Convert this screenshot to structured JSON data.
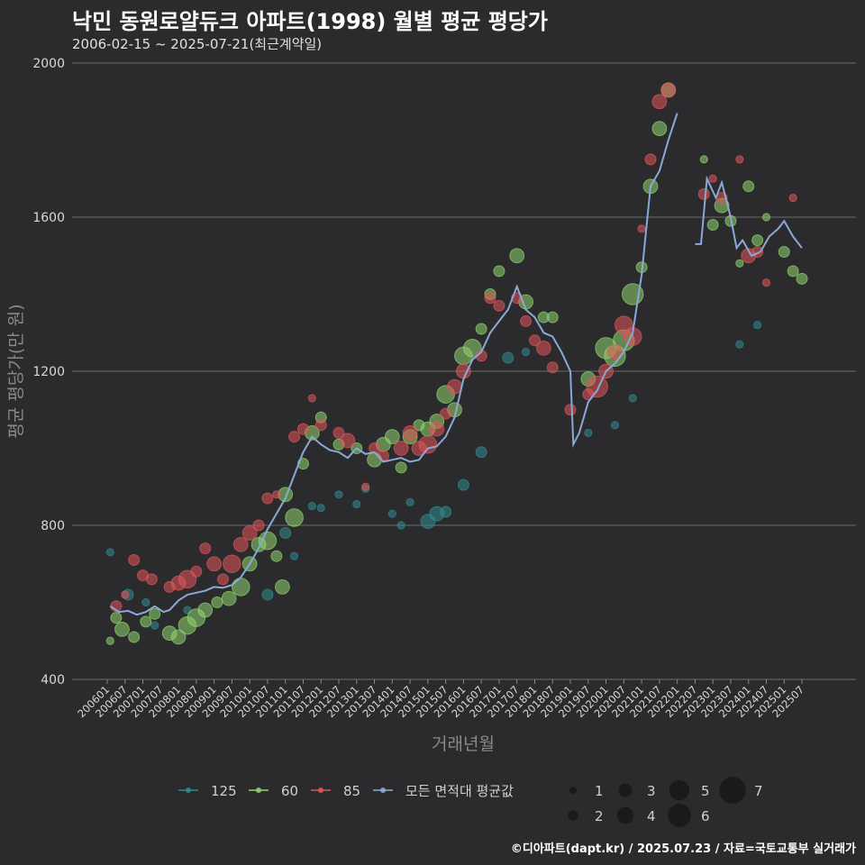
{
  "header": {
    "title": "낙민 동원로얄듀크 아파트(1998) 월별 평균 평당가",
    "subtitle": "2006-02-15 ~ 2025-07-21(최근계약일)"
  },
  "footer": {
    "caption": "©디아파트(dapt.kr) / 2025.07.23 / 자료=국토교통부 실거래가"
  },
  "colors": {
    "background": "#2b2b2d",
    "grid": "#6b6b6b",
    "area_125": "#2f8a8f",
    "area_60": "#8fd46e",
    "area_85": "#e0555a",
    "avg_line": "#8aa9d6"
  },
  "chart_data": {
    "type": "scatter",
    "title": "낙민 동원로얄듀크 아파트(1998) 월별 평균 평당가",
    "xlabel": "거래년월",
    "ylabel": "평균 평당가(만 원)",
    "x_ticks": [
      "200601",
      "200607",
      "200701",
      "200707",
      "200801",
      "200807",
      "200901",
      "200907",
      "201001",
      "201007",
      "201101",
      "201107",
      "201201",
      "201207",
      "201301",
      "201307",
      "201401",
      "201407",
      "201501",
      "201507",
      "201601",
      "201607",
      "201701",
      "201707",
      "201801",
      "201807",
      "201901",
      "201907",
      "202001",
      "202007",
      "202101",
      "202107",
      "202201",
      "202207",
      "202301",
      "202307",
      "202401",
      "202407",
      "202501",
      "202507"
    ],
    "y_ticks": [
      400,
      800,
      1200,
      1600,
      2000
    ],
    "ylim": [
      400,
      2000
    ],
    "grid": true,
    "legend_position": "bottom",
    "legend": {
      "areas": [
        "125",
        "60",
        "85",
        "모든 면적대 평균값"
      ],
      "sizes": [
        1,
        2,
        3,
        4,
        5,
        6,
        7
      ]
    },
    "avg_line": {
      "name": "모든 면적대 평균값",
      "points": [
        [
          "2006-02",
          590
        ],
        [
          "2006-05",
          575
        ],
        [
          "2006-08",
          578
        ],
        [
          "2006-11",
          568
        ],
        [
          "2007-02",
          575
        ],
        [
          "2007-05",
          590
        ],
        [
          "2007-08",
          575
        ],
        [
          "2007-10",
          580
        ],
        [
          "2008-01",
          605
        ],
        [
          "2008-04",
          620
        ],
        [
          "2008-07",
          625
        ],
        [
          "2008-10",
          630
        ],
        [
          "2009-01",
          640
        ],
        [
          "2009-04",
          638
        ],
        [
          "2009-07",
          645
        ],
        [
          "2009-10",
          665
        ],
        [
          "2010-01",
          700
        ],
        [
          "2010-04",
          740
        ],
        [
          "2010-07",
          790
        ],
        [
          "2010-10",
          830
        ],
        [
          "2011-01",
          870
        ],
        [
          "2011-04",
          930
        ],
        [
          "2011-07",
          990
        ],
        [
          "2011-10",
          1030
        ],
        [
          "2012-01",
          1010
        ],
        [
          "2012-04",
          995
        ],
        [
          "2012-07",
          990
        ],
        [
          "2012-10",
          975
        ],
        [
          "2013-01",
          1000
        ],
        [
          "2013-04",
          985
        ],
        [
          "2013-07",
          990
        ],
        [
          "2013-10",
          965
        ],
        [
          "2014-01",
          970
        ],
        [
          "2014-04",
          975
        ],
        [
          "2014-07",
          965
        ],
        [
          "2014-10",
          970
        ],
        [
          "2015-01",
          1000
        ],
        [
          "2015-04",
          1005
        ],
        [
          "2015-07",
          1030
        ],
        [
          "2015-10",
          1080
        ],
        [
          "2016-01",
          1180
        ],
        [
          "2016-04",
          1230
        ],
        [
          "2016-07",
          1250
        ],
        [
          "2016-10",
          1300
        ],
        [
          "2017-01",
          1330
        ],
        [
          "2017-04",
          1360
        ],
        [
          "2017-07",
          1420
        ],
        [
          "2017-10",
          1360
        ],
        [
          "2018-01",
          1340
        ],
        [
          "2018-04",
          1300
        ],
        [
          "2018-07",
          1290
        ],
        [
          "2018-10",
          1250
        ],
        [
          "2019-01",
          1200
        ],
        [
          "2019-02",
          1010
        ],
        [
          "2019-04",
          1040
        ],
        [
          "2019-07",
          1120
        ],
        [
          "2019-10",
          1150
        ],
        [
          "2020-01",
          1200
        ],
        [
          "2020-04",
          1220
        ],
        [
          "2020-07",
          1250
        ],
        [
          "2020-10",
          1300
        ],
        [
          "2021-01",
          1450
        ],
        [
          "2021-04",
          1680
        ],
        [
          "2021-07",
          1720
        ],
        [
          "2021-10",
          1800
        ],
        [
          "2022-01",
          1870
        ],
        null,
        [
          "2022-07",
          1530
        ],
        [
          "2022-09",
          1530
        ],
        [
          "2022-11",
          1700
        ],
        [
          "2023-02",
          1650
        ],
        [
          "2023-04",
          1690
        ],
        [
          "2023-07",
          1600
        ],
        [
          "2023-09",
          1520
        ],
        [
          "2023-11",
          1540
        ],
        [
          "2024-02",
          1500
        ],
        [
          "2024-05",
          1510
        ],
        [
          "2024-08",
          1550
        ],
        [
          "2024-11",
          1570
        ],
        [
          "2025-01",
          1590
        ],
        [
          "2025-04",
          1550
        ],
        [
          "2025-07",
          1520
        ]
      ]
    },
    "series": [
      {
        "name": "125",
        "points": [
          [
            "2006-02",
            730,
            1
          ],
          [
            "2006-08",
            620,
            2
          ],
          [
            "2007-02",
            600,
            1
          ],
          [
            "2007-05",
            540,
            1
          ],
          [
            "2008-04",
            580,
            1
          ],
          [
            "2010-07",
            620,
            2
          ],
          [
            "2011-01",
            780,
            2
          ],
          [
            "2011-04",
            720,
            1
          ],
          [
            "2011-10",
            850,
            1
          ],
          [
            "2012-01",
            845,
            1
          ],
          [
            "2012-07",
            880,
            1
          ],
          [
            "2013-01",
            855,
            1
          ],
          [
            "2013-04",
            895,
            1
          ],
          [
            "2014-01",
            830,
            1
          ],
          [
            "2014-04",
            800,
            1
          ],
          [
            "2014-07",
            860,
            1
          ],
          [
            "2015-01",
            810,
            3
          ],
          [
            "2015-04",
            830,
            3
          ],
          [
            "2015-07",
            835,
            2
          ],
          [
            "2016-01",
            905,
            2
          ],
          [
            "2016-07",
            990,
            2
          ],
          [
            "2017-04",
            1235,
            2
          ],
          [
            "2017-10",
            1250,
            1
          ],
          [
            "2019-07",
            1040,
            1
          ],
          [
            "2020-04",
            1060,
            1
          ],
          [
            "2020-10",
            1130,
            1
          ],
          [
            "2023-10",
            1270,
            1
          ],
          [
            "2024-04",
            1320,
            1
          ]
        ]
      },
      {
        "name": "60",
        "points": [
          [
            "2006-02",
            500,
            1
          ],
          [
            "2006-04",
            560,
            2
          ],
          [
            "2006-06",
            530,
            3
          ],
          [
            "2006-10",
            510,
            2
          ],
          [
            "2007-02",
            550,
            2
          ],
          [
            "2007-05",
            570,
            2
          ],
          [
            "2007-10",
            520,
            3
          ],
          [
            "2008-01",
            510,
            3
          ],
          [
            "2008-04",
            540,
            4
          ],
          [
            "2008-07",
            560,
            4
          ],
          [
            "2008-10",
            580,
            3
          ],
          [
            "2009-02",
            600,
            2
          ],
          [
            "2009-06",
            610,
            3
          ],
          [
            "2009-10",
            640,
            4
          ],
          [
            "2010-01",
            700,
            3
          ],
          [
            "2010-04",
            750,
            3
          ],
          [
            "2010-07",
            760,
            4
          ],
          [
            "2010-10",
            720,
            2
          ],
          [
            "2010-12",
            640,
            3
          ],
          [
            "2011-01",
            880,
            3
          ],
          [
            "2011-04",
            820,
            4
          ],
          [
            "2011-07",
            960,
            2
          ],
          [
            "2011-10",
            1040,
            3
          ],
          [
            "2012-01",
            1080,
            2
          ],
          [
            "2012-07",
            1010,
            2
          ],
          [
            "2013-01",
            1000,
            2
          ],
          [
            "2013-07",
            970,
            3
          ],
          [
            "2013-10",
            1010,
            3
          ],
          [
            "2014-01",
            1030,
            3
          ],
          [
            "2014-04",
            950,
            2
          ],
          [
            "2014-07",
            1030,
            3
          ],
          [
            "2014-10",
            1060,
            2
          ],
          [
            "2015-01",
            1050,
            3
          ],
          [
            "2015-04",
            1070,
            3
          ],
          [
            "2015-07",
            1140,
            4
          ],
          [
            "2015-10",
            1100,
            3
          ],
          [
            "2016-01",
            1240,
            4
          ],
          [
            "2016-04",
            1260,
            4
          ],
          [
            "2016-07",
            1310,
            2
          ],
          [
            "2016-10",
            1400,
            2
          ],
          [
            "2017-01",
            1460,
            2
          ],
          [
            "2017-07",
            1500,
            3
          ],
          [
            "2017-10",
            1380,
            3
          ],
          [
            "2018-04",
            1340,
            2
          ],
          [
            "2018-07",
            1340,
            2
          ],
          [
            "2019-07",
            1180,
            3
          ],
          [
            "2020-01",
            1260,
            5
          ],
          [
            "2020-04",
            1240,
            5
          ],
          [
            "2020-07",
            1280,
            5
          ],
          [
            "2020-10",
            1400,
            5
          ],
          [
            "2021-01",
            1470,
            2
          ],
          [
            "2021-04",
            1680,
            3
          ],
          [
            "2021-07",
            1830,
            3
          ],
          [
            "2021-10",
            1930,
            3
          ],
          [
            "2022-10",
            1750,
            1
          ],
          [
            "2023-01",
            1580,
            2
          ],
          [
            "2023-04",
            1630,
            3
          ],
          [
            "2023-07",
            1590,
            2
          ],
          [
            "2023-10",
            1480,
            1
          ],
          [
            "2024-01",
            1680,
            2
          ],
          [
            "2024-04",
            1540,
            2
          ],
          [
            "2024-07",
            1600,
            1
          ],
          [
            "2025-01",
            1510,
            2
          ],
          [
            "2025-04",
            1460,
            2
          ],
          [
            "2025-07",
            1440,
            2
          ]
        ]
      },
      {
        "name": "85",
        "points": [
          [
            "2006-04",
            590,
            2
          ],
          [
            "2006-07",
            620,
            1
          ],
          [
            "2006-10",
            710,
            2
          ],
          [
            "2007-01",
            670,
            2
          ],
          [
            "2007-04",
            660,
            2
          ],
          [
            "2007-10",
            640,
            2
          ],
          [
            "2008-01",
            650,
            3
          ],
          [
            "2008-04",
            660,
            4
          ],
          [
            "2008-07",
            680,
            2
          ],
          [
            "2008-10",
            740,
            2
          ],
          [
            "2009-01",
            700,
            3
          ],
          [
            "2009-04",
            660,
            2
          ],
          [
            "2009-07",
            700,
            4
          ],
          [
            "2009-10",
            750,
            3
          ],
          [
            "2010-01",
            780,
            3
          ],
          [
            "2010-04",
            800,
            2
          ],
          [
            "2010-07",
            870,
            2
          ],
          [
            "2010-10",
            880,
            1
          ],
          [
            "2011-04",
            1030,
            2
          ],
          [
            "2011-07",
            1050,
            2
          ],
          [
            "2011-10",
            1130,
            1
          ],
          [
            "2012-01",
            1060,
            2
          ],
          [
            "2012-07",
            1040,
            2
          ],
          [
            "2012-10",
            1020,
            3
          ],
          [
            "2013-04",
            900,
            1
          ],
          [
            "2013-07",
            1000,
            2
          ],
          [
            "2013-10",
            980,
            2
          ],
          [
            "2014-04",
            1000,
            3
          ],
          [
            "2014-07",
            1040,
            3
          ],
          [
            "2014-10",
            1000,
            3
          ],
          [
            "2015-01",
            1010,
            4
          ],
          [
            "2015-04",
            1050,
            3
          ],
          [
            "2015-07",
            1090,
            2
          ],
          [
            "2015-10",
            1160,
            3
          ],
          [
            "2016-01",
            1200,
            3
          ],
          [
            "2016-07",
            1240,
            2
          ],
          [
            "2016-10",
            1390,
            2
          ],
          [
            "2017-01",
            1370,
            2
          ],
          [
            "2017-07",
            1390,
            2
          ],
          [
            "2017-10",
            1330,
            2
          ],
          [
            "2018-01",
            1280,
            2
          ],
          [
            "2018-04",
            1260,
            3
          ],
          [
            "2018-07",
            1210,
            2
          ],
          [
            "2019-01",
            1100,
            2
          ],
          [
            "2019-07",
            1140,
            2
          ],
          [
            "2019-10",
            1160,
            5
          ],
          [
            "2020-01",
            1200,
            3
          ],
          [
            "2020-04",
            1250,
            3
          ],
          [
            "2020-07",
            1320,
            4
          ],
          [
            "2020-10",
            1290,
            4
          ],
          [
            "2021-01",
            1570,
            1
          ],
          [
            "2021-04",
            1750,
            2
          ],
          [
            "2021-07",
            1900,
            3
          ],
          [
            "2021-10",
            1930,
            3
          ],
          [
            "2022-10",
            1660,
            2
          ],
          [
            "2023-01",
            1700,
            1
          ],
          [
            "2023-04",
            1650,
            2
          ],
          [
            "2023-10",
            1750,
            1
          ],
          [
            "2024-01",
            1500,
            3
          ],
          [
            "2024-04",
            1510,
            2
          ],
          [
            "2024-07",
            1430,
            1
          ],
          [
            "2025-04",
            1650,
            1
          ]
        ]
      }
    ]
  }
}
